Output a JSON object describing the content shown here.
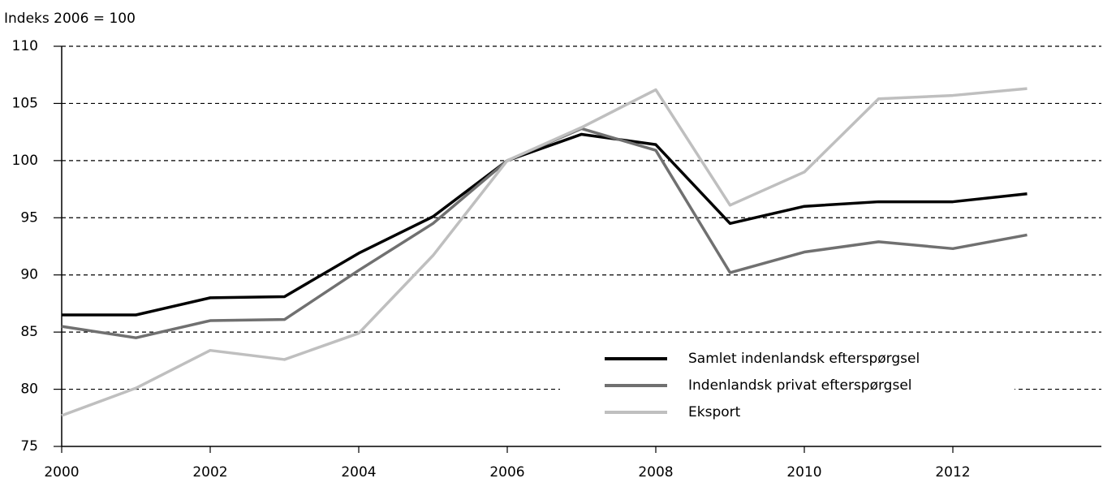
{
  "chart_data": {
    "type": "line",
    "y_label": "Indeks 2006 = 100",
    "x": [
      2000,
      2001,
      2002,
      2003,
      2004,
      2005,
      2006,
      2007,
      2008,
      2009,
      2010,
      2011,
      2012,
      2013
    ],
    "series": [
      {
        "name": "Samlet indenlandsk efterspørgsel",
        "color": "#000000",
        "values": [
          86.5,
          86.5,
          88.0,
          88.1,
          91.9,
          95.1,
          100,
          102.3,
          101.4,
          94.5,
          96.0,
          96.4,
          96.4,
          97.1
        ]
      },
      {
        "name": "Indenlandsk privat efterspørgsel",
        "color": "#707070",
        "values": [
          85.5,
          84.5,
          86.0,
          86.1,
          90.4,
          94.5,
          100,
          102.8,
          100.9,
          90.2,
          92.0,
          92.9,
          92.3,
          93.5
        ]
      },
      {
        "name": "Eksport",
        "color": "#bfbfbf",
        "values": [
          77.7,
          80.1,
          83.4,
          82.6,
          84.9,
          91.7,
          100,
          102.9,
          106.2,
          96.1,
          99.0,
          105.4,
          105.7,
          106.3
        ]
      }
    ],
    "xlim": [
      2000,
      2014
    ],
    "xticks": [
      2000,
      2002,
      2004,
      2006,
      2008,
      2010,
      2012
    ],
    "ylim": [
      75,
      110
    ],
    "yticks": [
      75,
      80,
      85,
      90,
      95,
      100,
      105,
      110
    ],
    "grid": true,
    "legend": "lower right"
  }
}
